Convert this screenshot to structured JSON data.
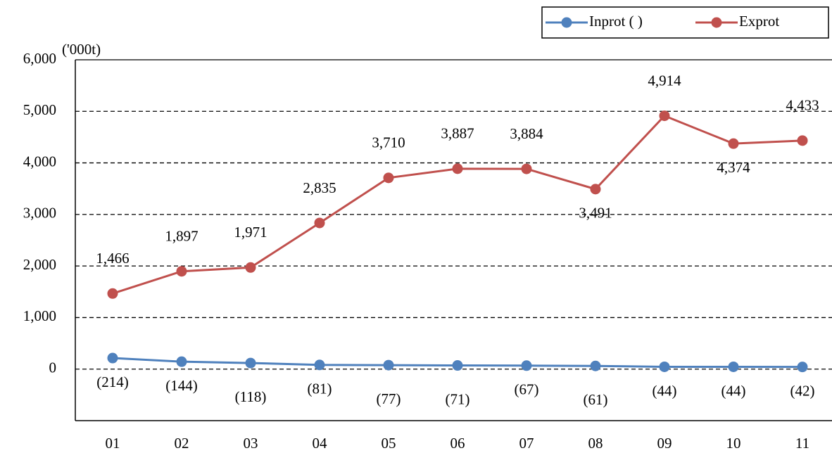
{
  "chart_data": {
    "type": "line",
    "unit_label": "('000t)",
    "categories": [
      "01",
      "02",
      "03",
      "04",
      "05",
      "06",
      "07",
      "08",
      "09",
      "10",
      "11"
    ],
    "series": [
      {
        "name": "Inprot ( )",
        "color": "#4f81bd",
        "values": [
          214,
          144,
          118,
          81,
          77,
          71,
          67,
          61,
          44,
          44,
          42
        ],
        "value_labels": [
          "(214)",
          "(144)",
          "(118)",
          "(81)",
          "(77)",
          "(71)",
          "(67)",
          "(61)",
          "(44)",
          "(44)",
          "(42)"
        ]
      },
      {
        "name": "Exprot",
        "color": "#c0504d",
        "values": [
          1466,
          1897,
          1971,
          2835,
          3710,
          3887,
          3884,
          3491,
          4914,
          4374,
          4433
        ],
        "value_labels": [
          "1,466",
          "1,897",
          "1,971",
          "2,835",
          "3,710",
          "3,887",
          "3,884",
          "3,491",
          "4,914",
          "4,374",
          "4,433"
        ]
      }
    ],
    "ylim": [
      -1000,
      6000
    ],
    "yticks": [
      0,
      {
        "value": 1000,
        "label": "1,000"
      },
      {
        "value": 2000,
        "label": "2,000"
      },
      {
        "value": 3000,
        "label": "3,000"
      },
      {
        "value": 4000,
        "label": "4,000"
      },
      {
        "value": 5000,
        "label": "5,000"
      },
      {
        "value": 6000,
        "label": "6,000"
      }
    ],
    "grid": true
  }
}
